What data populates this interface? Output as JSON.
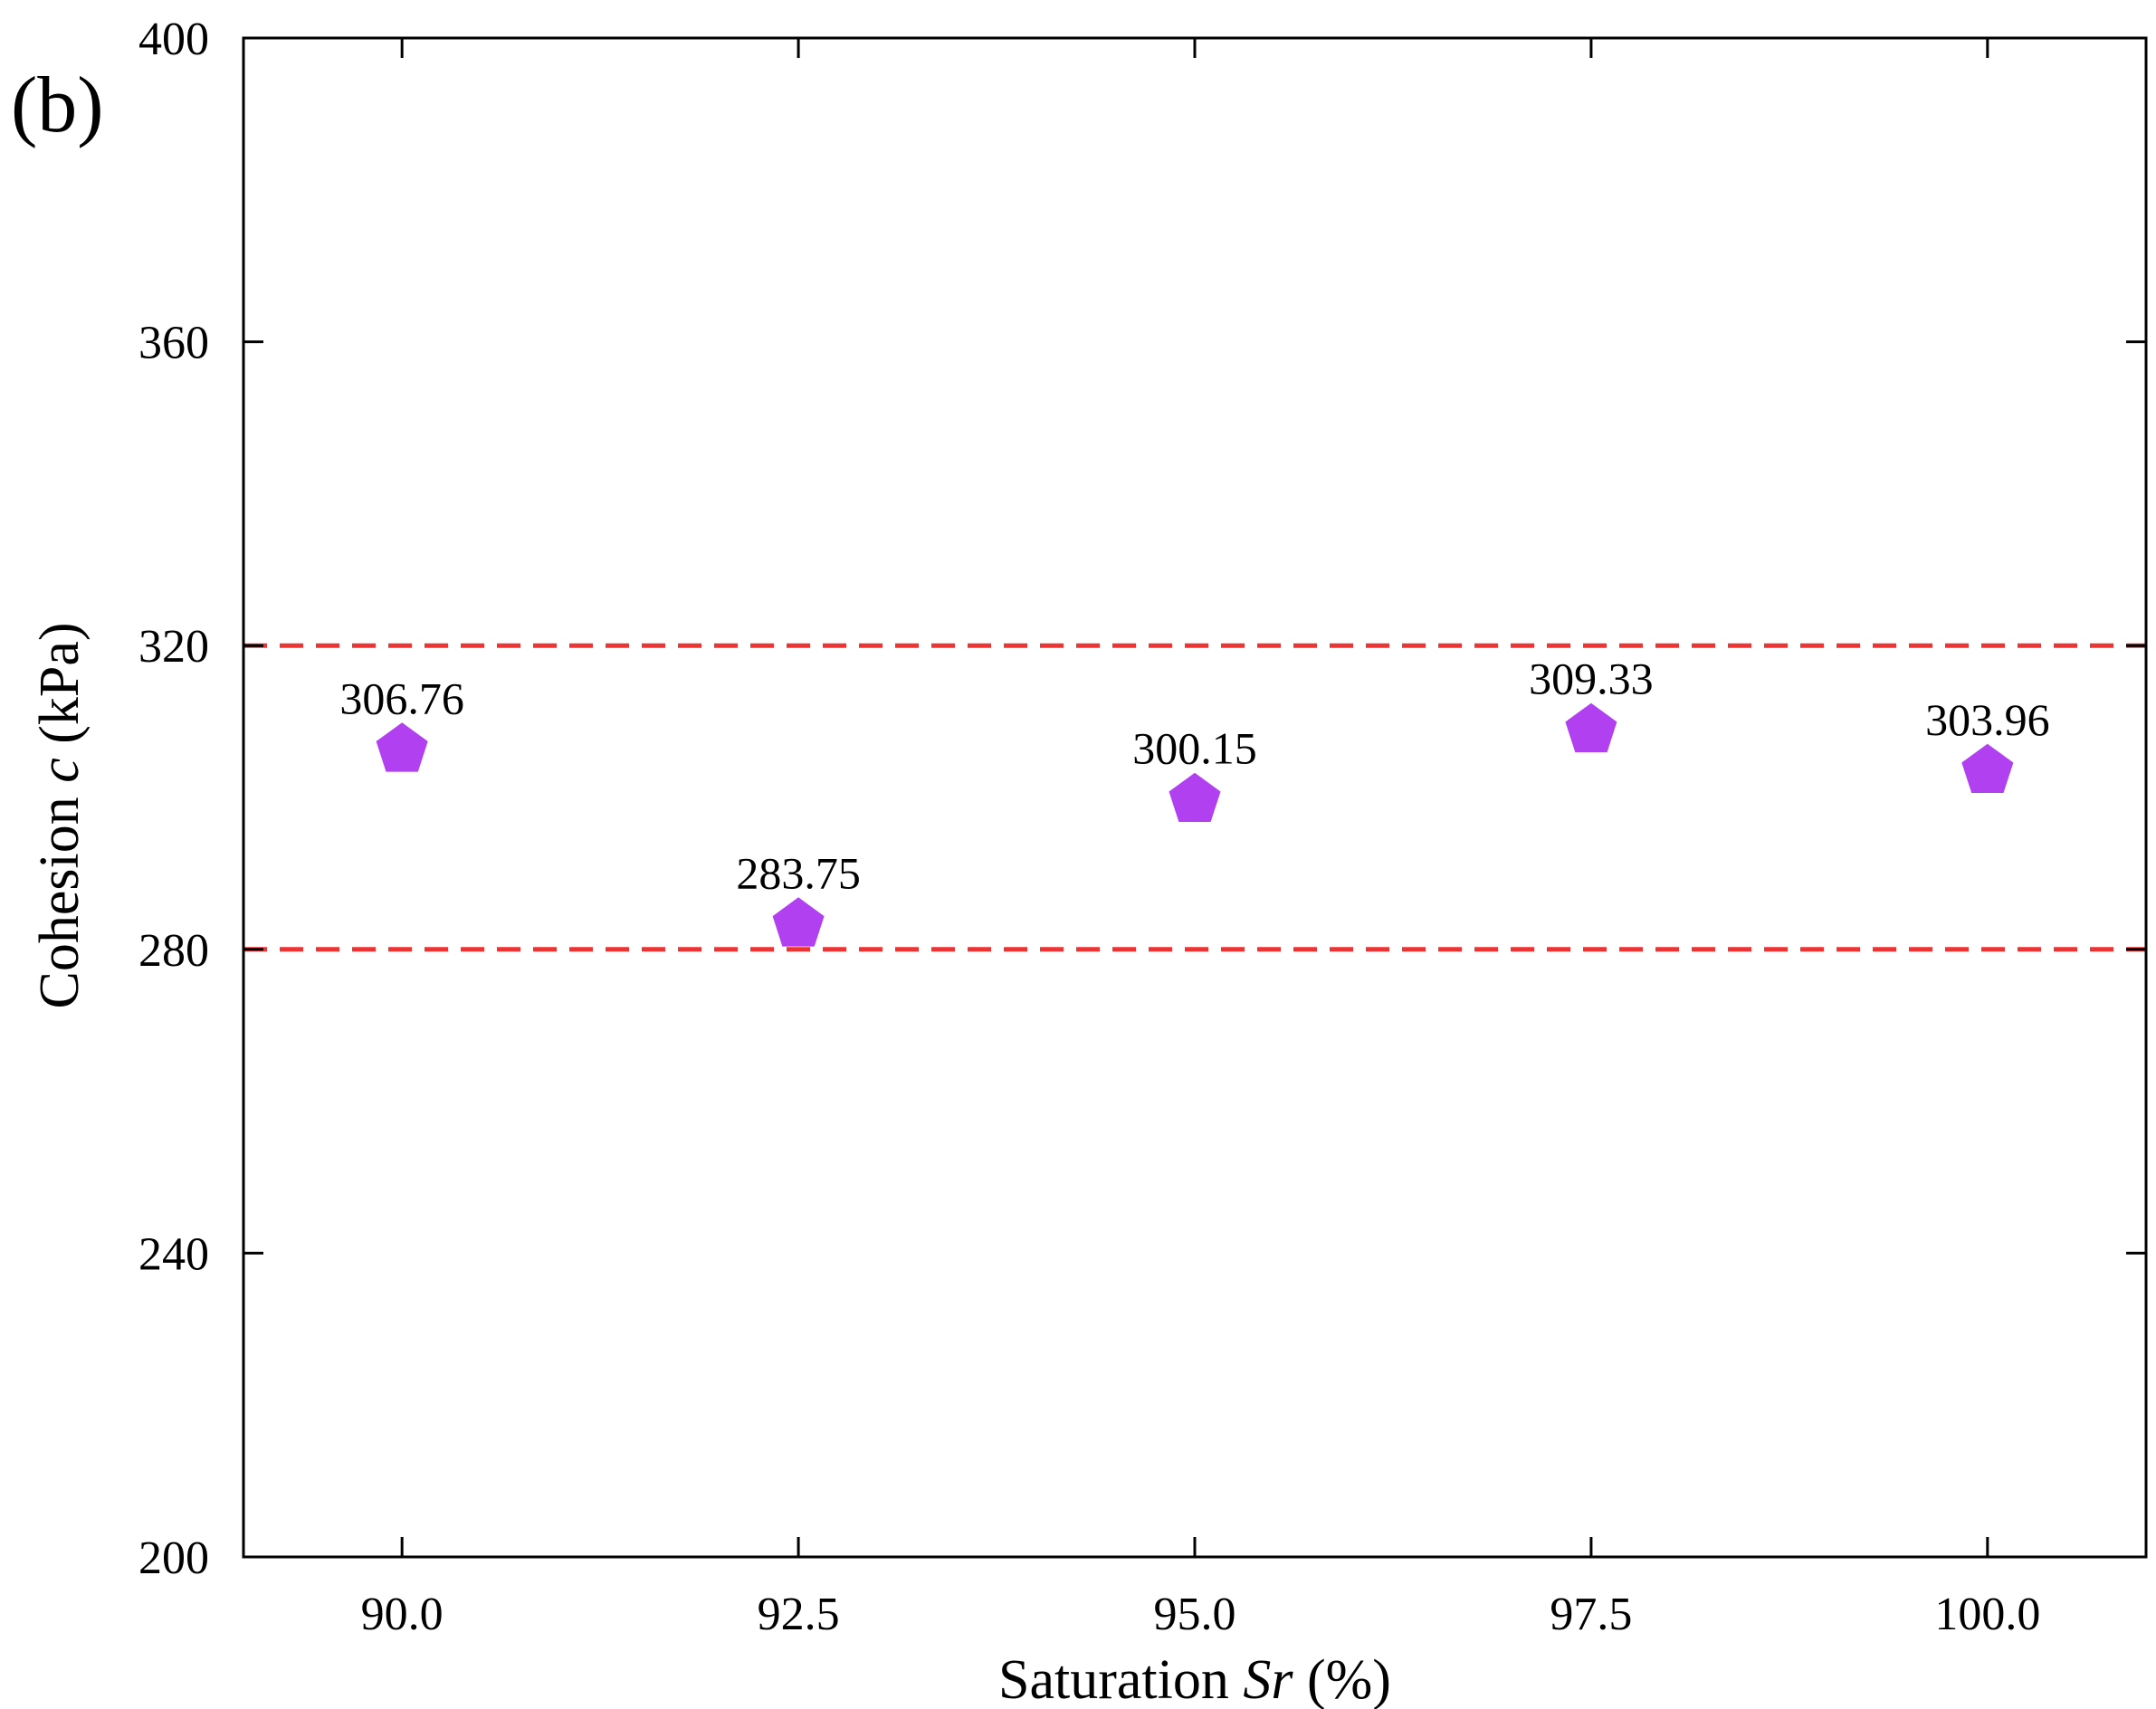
{
  "chart_data": {
    "type": "scatter",
    "panel_label": "(b)",
    "x": [
      90.0,
      92.5,
      95.0,
      97.5,
      100.0
    ],
    "y": [
      306.76,
      283.75,
      300.15,
      309.33,
      303.96
    ],
    "data_labels": [
      "306.76",
      "283.75",
      "300.15",
      "309.33",
      "303.96"
    ],
    "xticks": [
      90.0,
      92.5,
      95.0,
      97.5,
      100.0
    ],
    "xtick_labels": [
      "90.0",
      "92.5",
      "95.0",
      "97.5",
      "100.0"
    ],
    "yticks": [
      200,
      240,
      280,
      320,
      360,
      400
    ],
    "ytick_labels": [
      "200",
      "240",
      "280",
      "320",
      "360",
      "400"
    ],
    "xlim": [
      89.0,
      101.0
    ],
    "ylim": [
      200,
      400
    ],
    "xlabel": {
      "prefix": "Saturation ",
      "var": "Sr",
      "suffix": " (%)"
    },
    "ylabel": {
      "prefix": "Cohesion ",
      "var": "c",
      "suffix": " (kPa)"
    },
    "reference_lines": [
      280,
      320
    ],
    "colors": {
      "marker": "#b040f0",
      "reference_line": "#ee3333",
      "axis": "#000000"
    },
    "marker": "pentagon",
    "grid": false
  }
}
